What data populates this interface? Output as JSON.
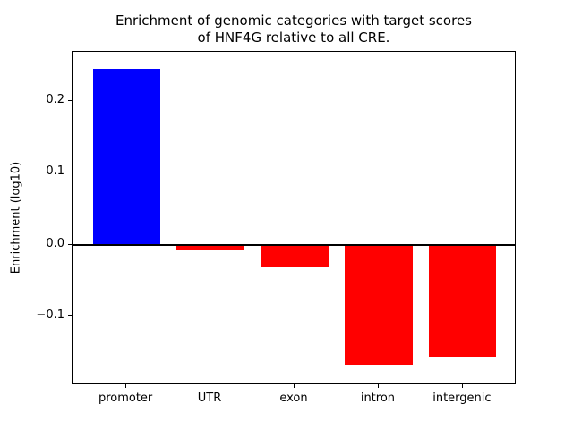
{
  "chart_data": {
    "type": "bar",
    "title": "Enrichment of genomic categories with target scores\nof HNF4G relative to all CRE.",
    "ylabel": "Enrichment (log10)",
    "xlabel": "",
    "categories": [
      "promoter",
      "UTR",
      "exon",
      "intron",
      "intergenic"
    ],
    "values": [
      0.245,
      -0.008,
      -0.031,
      -0.166,
      -0.156
    ],
    "colors": [
      "#0000ff",
      "#ff0000",
      "#ff0000",
      "#ff0000",
      "#ff0000"
    ],
    "ylim": [
      -0.195,
      0.268
    ],
    "xlim": [
      -0.64,
      4.64
    ],
    "yticks": [
      -0.1,
      0.0,
      0.1,
      0.2
    ],
    "bar_width_fraction": 0.8,
    "zero_line": true,
    "grid": false,
    "legend": "none"
  }
}
